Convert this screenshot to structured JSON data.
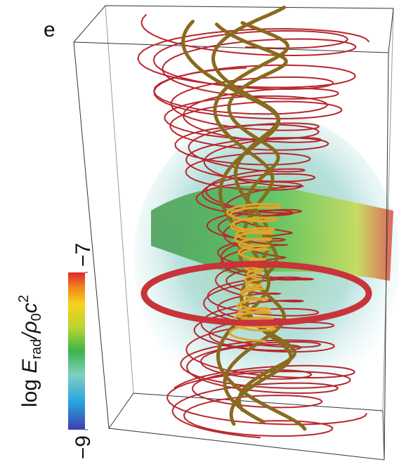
{
  "panel_label": "e",
  "colorbar": {
    "label": {
      "prefix": "log ",
      "symbol": "E",
      "subscript": "rad",
      "divider": "/ρ",
      "subscript2": "0",
      "symbol2": "c",
      "superscript": "2"
    },
    "range": [
      -9,
      -7
    ],
    "ticks": [
      {
        "value": -9,
        "label": "−9"
      },
      {
        "value": -7,
        "label": "−7"
      }
    ]
  }
}
